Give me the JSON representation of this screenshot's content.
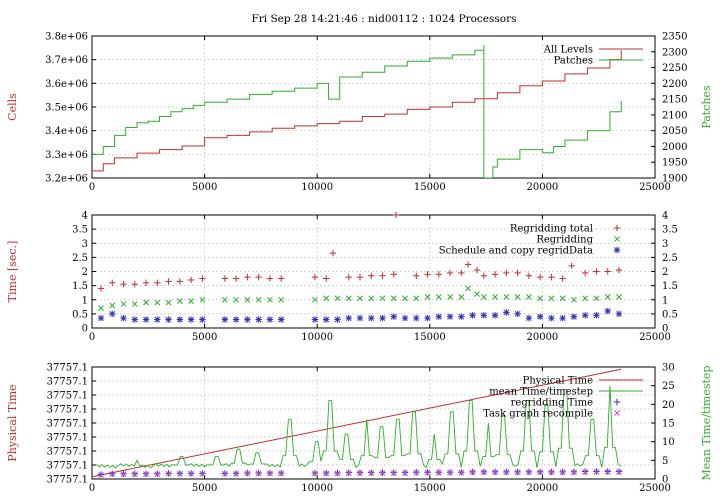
{
  "title": "Fri Sep 28 14:21:46 : nid00112 : 1024 Processors",
  "chart_data": [
    {
      "type": "line",
      "xlim": [
        0,
        25000
      ],
      "xticks": [
        0,
        5000,
        10000,
        15000,
        20000,
        25000
      ],
      "ylabel": "Cells",
      "ylim": [
        3200000,
        3800000
      ],
      "yticks": [
        "3.2e+06",
        "3.3e+06",
        "3.4e+06",
        "3.5e+06",
        "3.6e+06",
        "3.7e+06",
        "3.8e+06"
      ],
      "ytick_values": [
        3200000,
        3300000,
        3400000,
        3500000,
        3600000,
        3700000,
        3800000
      ],
      "y2label": "Patches",
      "y2lim": [
        1900,
        2350
      ],
      "y2ticks": [
        1900,
        1950,
        2000,
        2050,
        2100,
        2150,
        2200,
        2250,
        2300,
        2350
      ],
      "grid": true,
      "legend": "top-right",
      "series": [
        {
          "name": "All Levels",
          "axis": "left",
          "color": "#c0302c",
          "step": true,
          "x": [
            0,
            500,
            1000,
            2000,
            3000,
            4000,
            5000,
            6000,
            7000,
            8000,
            9000,
            10000,
            11000,
            12000,
            13000,
            14000,
            15000,
            16000,
            17000,
            18000,
            19000,
            20000,
            21000,
            22000,
            23000,
            23500
          ],
          "y": [
            3230000,
            3260000,
            3285000,
            3305000,
            3320000,
            3335000,
            3370000,
            3380000,
            3395000,
            3410000,
            3420000,
            3430000,
            3440000,
            3460000,
            3470000,
            3490000,
            3500000,
            3520000,
            3535000,
            3560000,
            3590000,
            3610000,
            3640000,
            3665000,
            3700000,
            3740000
          ]
        },
        {
          "name": "Patches",
          "axis": "right",
          "color": "#2fae2f",
          "step": true,
          "x": [
            0,
            500,
            1000,
            1500,
            2000,
            2500,
            3000,
            3500,
            4000,
            4500,
            5000,
            6000,
            7000,
            8000,
            9000,
            10000,
            10500,
            11000,
            12000,
            13000,
            14000,
            15000,
            16000,
            17000,
            17400,
            17401,
            17800,
            18000,
            19000,
            19500,
            20000,
            20500,
            21000,
            22000,
            23000,
            23500
          ],
          "y": [
            1975,
            2000,
            2035,
            2060,
            2075,
            2080,
            2095,
            2110,
            2120,
            2130,
            2140,
            2150,
            2165,
            2175,
            2185,
            2200,
            2150,
            2220,
            2235,
            2255,
            2270,
            2280,
            2290,
            2305,
            2320,
            1900,
            1935,
            1960,
            1990,
            1990,
            1980,
            2000,
            2020,
            2050,
            2110,
            2145
          ]
        }
      ]
    },
    {
      "type": "scatter",
      "xlim": [
        0,
        25000
      ],
      "xticks": [
        0,
        5000,
        10000,
        15000,
        20000,
        25000
      ],
      "ylabel": "Time [sec.]",
      "ylim": [
        0,
        4
      ],
      "yticks": [
        0,
        0.5,
        1,
        1.5,
        2,
        2.5,
        3,
        3.5,
        4
      ],
      "y2lim": [
        0,
        4
      ],
      "y2ticks": [
        0,
        0.5,
        1,
        1.5,
        2,
        2.5,
        3,
        3.5,
        4
      ],
      "grid": true,
      "legend": "top-right",
      "series": [
        {
          "name": "Regridding total",
          "marker": "+",
          "color": "#c0302c",
          "x": [
            400,
            900,
            1400,
            1900,
            2400,
            2900,
            3400,
            3900,
            4400,
            4900,
            5900,
            6400,
            6900,
            7400,
            7900,
            8400,
            9900,
            10400,
            10700,
            11400,
            11900,
            12400,
            12900,
            13400,
            13500,
            14400,
            14900,
            15400,
            15900,
            16400,
            16700,
            17100,
            17400,
            17900,
            18400,
            18900,
            19400,
            19900,
            20400,
            20900,
            21300,
            21900,
            22400,
            22900,
            23400
          ],
          "y": [
            1.4,
            1.6,
            1.55,
            1.55,
            1.6,
            1.6,
            1.65,
            1.65,
            1.7,
            1.75,
            1.75,
            1.75,
            1.8,
            1.8,
            1.75,
            1.75,
            1.8,
            1.75,
            2.65,
            1.8,
            1.8,
            1.85,
            1.85,
            1.9,
            4.0,
            1.85,
            1.9,
            1.9,
            1.95,
            1.95,
            2.25,
            2.05,
            1.85,
            1.9,
            1.95,
            1.95,
            1.85,
            1.8,
            1.8,
            1.75,
            2.2,
            1.95,
            2.0,
            2.0,
            2.05
          ]
        },
        {
          "name": "Regridding",
          "marker": "x",
          "color": "#2fae2f",
          "x": [
            400,
            900,
            1400,
            1900,
            2400,
            2900,
            3400,
            3900,
            4400,
            4900,
            5900,
            6400,
            6900,
            7400,
            7900,
            8400,
            9900,
            10400,
            10900,
            11400,
            11900,
            12400,
            12900,
            13400,
            13900,
            14400,
            14900,
            15400,
            15900,
            16400,
            16700,
            17100,
            17400,
            17900,
            18400,
            18900,
            19400,
            19900,
            20400,
            20900,
            21400,
            21900,
            22400,
            22900,
            23400
          ],
          "y": [
            0.7,
            0.8,
            0.85,
            0.85,
            0.9,
            0.9,
            0.9,
            0.95,
            0.95,
            1.0,
            1.0,
            1.0,
            1.0,
            1.0,
            1.0,
            1.0,
            1.0,
            1.05,
            1.05,
            1.05,
            1.05,
            1.05,
            1.05,
            1.05,
            1.05,
            1.05,
            1.1,
            1.1,
            1.1,
            1.1,
            1.4,
            1.2,
            1.1,
            1.1,
            1.1,
            1.1,
            1.1,
            1.05,
            1.05,
            1.05,
            1.0,
            1.05,
            1.05,
            1.1,
            1.1
          ]
        },
        {
          "name": "Schedule and copy regridData",
          "marker": "*",
          "color": "#3030b8",
          "x": [
            400,
            900,
            1400,
            1900,
            2400,
            2900,
            3400,
            3900,
            4400,
            4900,
            5900,
            6400,
            6900,
            7400,
            7900,
            8400,
            9900,
            10400,
            10900,
            11400,
            11900,
            12400,
            12900,
            13400,
            13900,
            14400,
            14900,
            15400,
            15900,
            16400,
            16900,
            17400,
            17900,
            18400,
            18900,
            19400,
            19900,
            20400,
            20900,
            21400,
            21900,
            22400,
            22900,
            23400
          ],
          "y": [
            0.35,
            0.5,
            0.35,
            0.3,
            0.3,
            0.3,
            0.3,
            0.3,
            0.3,
            0.3,
            0.3,
            0.3,
            0.3,
            0.3,
            0.3,
            0.3,
            0.3,
            0.3,
            0.3,
            0.35,
            0.35,
            0.35,
            0.35,
            0.4,
            0.35,
            0.35,
            0.35,
            0.4,
            0.4,
            0.4,
            0.45,
            0.45,
            0.45,
            0.55,
            0.5,
            0.35,
            0.4,
            0.35,
            0.35,
            0.4,
            0.45,
            0.45,
            0.6,
            0.5
          ]
        }
      ]
    },
    {
      "type": "line",
      "xlim": [
        0,
        25000
      ],
      "xticks": [
        0,
        5000,
        10000,
        15000,
        20000,
        25000
      ],
      "ylabel": "Physical Time",
      "ylim": [
        0,
        1
      ],
      "yticks": [
        "37757.1",
        "37757.1",
        "37757.1",
        "37757.1",
        "37757.1",
        "37757.1",
        "37757.1",
        "37757.1",
        "37757.1"
      ],
      "y2label": "Mean Time/timestep",
      "y2lim": [
        0,
        30
      ],
      "y2ticks": [
        0,
        5,
        10,
        15,
        20,
        25,
        30
      ],
      "grid": true,
      "legend": "top-right",
      "series": [
        {
          "name": "Physical Time",
          "axis": "left",
          "color": "#c0302c",
          "x": [
            0,
            23500
          ],
          "y": [
            0.02,
            0.98
          ]
        },
        {
          "name": "mean Time/timestep",
          "axis": "right",
          "color": "#2fae2f",
          "baseline": 3,
          "spikes": [
            {
              "x": 2000,
              "y": 5
            },
            {
              "x": 4000,
              "y": 6
            },
            {
              "x": 5500,
              "y": 6
            },
            {
              "x": 6500,
              "y": 8
            },
            {
              "x": 7300,
              "y": 7
            },
            {
              "x": 8800,
              "y": 16
            },
            {
              "x": 10000,
              "y": 10
            },
            {
              "x": 10600,
              "y": 21
            },
            {
              "x": 11300,
              "y": 12
            },
            {
              "x": 12200,
              "y": 16
            },
            {
              "x": 12900,
              "y": 14
            },
            {
              "x": 13600,
              "y": 16
            },
            {
              "x": 14300,
              "y": 18
            },
            {
              "x": 15200,
              "y": 12
            },
            {
              "x": 16000,
              "y": 18
            },
            {
              "x": 16800,
              "y": 21
            },
            {
              "x": 17600,
              "y": 15
            },
            {
              "x": 18300,
              "y": 17
            },
            {
              "x": 19300,
              "y": 21
            },
            {
              "x": 20200,
              "y": 20
            },
            {
              "x": 21000,
              "y": 24
            },
            {
              "x": 22200,
              "y": 16
            },
            {
              "x": 23000,
              "y": 25
            }
          ]
        },
        {
          "name": "regridding Time",
          "axis": "right",
          "marker": "+",
          "color": "#3030b8",
          "x": [
            400,
            900,
            1400,
            1900,
            2400,
            2900,
            3400,
            3900,
            4400,
            4900,
            5900,
            6400,
            6900,
            7400,
            7900,
            8400,
            9900,
            10400,
            10900,
            11400,
            11900,
            12400,
            12900,
            13400,
            13900,
            14400,
            14900,
            15400,
            15900,
            16400,
            16900,
            17400,
            17900,
            18400,
            18900,
            19400,
            19900,
            20400,
            20900,
            21400,
            21900,
            22400,
            22900,
            23400
          ],
          "y": [
            1.2,
            1.4,
            1.4,
            1.4,
            1.4,
            1.4,
            1.5,
            1.5,
            1.5,
            1.5,
            1.5,
            1.5,
            1.6,
            1.6,
            1.6,
            1.6,
            1.6,
            1.6,
            1.6,
            1.7,
            1.7,
            1.7,
            1.7,
            1.7,
            1.7,
            1.8,
            1.8,
            1.8,
            1.8,
            1.8,
            1.9,
            1.9,
            1.9,
            1.9,
            1.9,
            1.9,
            1.9,
            1.9,
            1.9,
            1.9,
            2.0,
            2.0,
            2.0,
            2.0
          ]
        },
        {
          "name": "Task graph recompile",
          "axis": "right",
          "marker": "x",
          "color": "#c040c0",
          "x": [
            400,
            900,
            1400,
            1900,
            2400,
            2900,
            3400,
            3900,
            4400,
            4900,
            5900,
            6400,
            6900,
            7400,
            7900,
            8400,
            9900,
            10400,
            10900,
            11400,
            11900,
            12400,
            12900,
            13400,
            13900,
            14400,
            14900,
            15400,
            15900,
            16400,
            16900,
            17400,
            17900,
            18400,
            18900,
            19400,
            19900,
            20400,
            20900,
            21400,
            21900,
            22400,
            22900,
            23400
          ],
          "y": [
            1.1,
            1.3,
            1.3,
            1.3,
            1.3,
            1.3,
            1.4,
            1.4,
            1.4,
            1.4,
            1.4,
            1.4,
            1.5,
            1.5,
            1.5,
            1.5,
            1.5,
            1.5,
            1.5,
            1.6,
            1.6,
            1.6,
            1.6,
            1.6,
            1.6,
            1.7,
            1.7,
            1.7,
            1.7,
            1.7,
            1.8,
            1.8,
            1.8,
            1.8,
            1.8,
            1.8,
            1.8,
            1.8,
            1.8,
            1.8,
            1.9,
            1.9,
            1.9,
            1.9
          ]
        }
      ]
    }
  ]
}
